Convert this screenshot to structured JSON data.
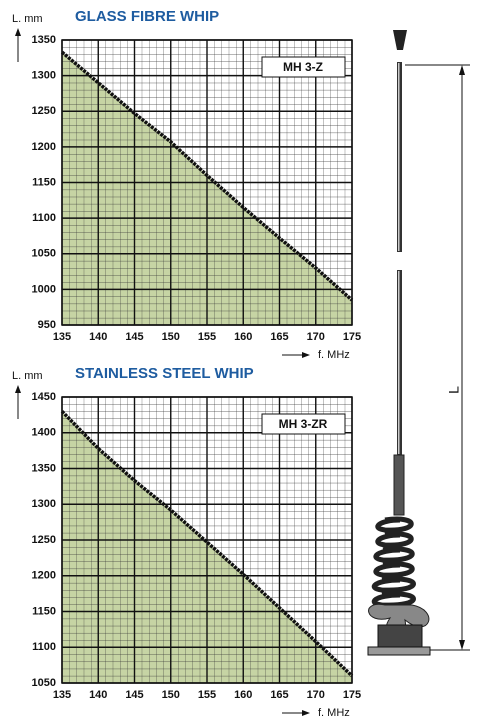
{
  "chart_data": [
    {
      "type": "area",
      "title": "GLASS FIBRE WHIP",
      "ylabel": "L. mm",
      "xlabel": "f. MHz",
      "annotation": "MH 3-Z",
      "x": [
        135,
        140,
        145,
        150,
        155,
        160,
        165,
        170,
        175
      ],
      "values": [
        1333,
        1290,
        1247,
        1207,
        1160,
        1115,
        1072,
        1030,
        985
      ],
      "color": "#111111",
      "fill_color": "#c6d4a4",
      "xlim": [
        135,
        175
      ],
      "ylim": [
        950,
        1350
      ],
      "xticks": [
        135,
        140,
        145,
        150,
        155,
        160,
        165,
        170,
        175
      ],
      "yticks": [
        950,
        1000,
        1050,
        1100,
        1150,
        1200,
        1250,
        1300,
        1350
      ],
      "grid": true
    },
    {
      "type": "area",
      "title": "STAINLESS STEEL WHIP",
      "ylabel": "L. mm",
      "xlabel": "f. MHz",
      "annotation": "MH 3-ZR",
      "x": [
        135,
        140,
        145,
        150,
        155,
        160,
        165,
        170,
        175
      ],
      "values": [
        1430,
        1378,
        1333,
        1292,
        1247,
        1202,
        1155,
        1108,
        1060
      ],
      "color": "#111111",
      "fill_color": "#c6d4a4",
      "xlim": [
        135,
        175
      ],
      "ylim": [
        1050,
        1450
      ],
      "xticks": [
        135,
        140,
        145,
        150,
        155,
        160,
        165,
        170,
        175
      ],
      "yticks": [
        1050,
        1100,
        1150,
        1200,
        1250,
        1300,
        1350,
        1400,
        1450
      ],
      "grid": true
    }
  ],
  "diagram": {
    "dimension_label": "L"
  }
}
